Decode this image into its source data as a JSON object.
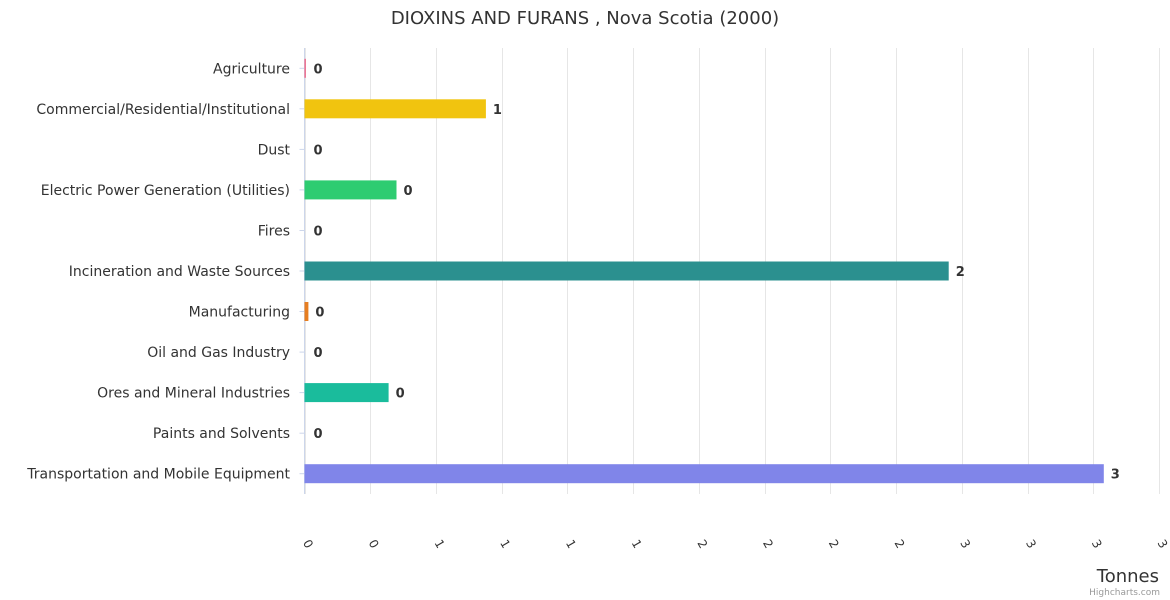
{
  "chart_data": {
    "type": "bar",
    "orientation": "horizontal",
    "title": "DIOXINS AND FURANS , Nova Scotia (2000)",
    "categories": [
      "Agriculture",
      "Commercial/Residential/Institutional",
      "Dust",
      "Electric Power Generation (Utilities)",
      "Fires",
      "Incineration and Waste Sources",
      "Manufacturing",
      "Oil and Gas Industry",
      "Ores and Mineral Industries",
      "Paints and Solvents",
      "Transportation and Mobile Equipment"
    ],
    "values": [
      0.005,
      0.69,
      0,
      0.35,
      0,
      2.45,
      0.015,
      0,
      0.32,
      0,
      3.04
    ],
    "data_labels": [
      "0",
      "1",
      "0",
      "0",
      "0",
      "2",
      "0",
      "0",
      "0",
      "0",
      "3"
    ],
    "colors": [
      "#f15c80",
      "#f1c40f",
      "#9b59b6",
      "#2ecc71",
      "#e74c3c",
      "#2b908f",
      "#e67e22",
      "#3498db",
      "#1abc9c",
      "#95a5a6",
      "#8085e9"
    ],
    "xlabel": "Tonnes",
    "xlim": [
      0,
      3.25
    ],
    "x_ticks": [
      0,
      0.25,
      0.5,
      0.75,
      1,
      1.25,
      1.5,
      1.75,
      2,
      2.25,
      2.5,
      2.75,
      3,
      3.25
    ],
    "x_tick_labels": [
      "0",
      "0",
      "1",
      "1",
      "1",
      "1",
      "2",
      "2",
      "2",
      "2",
      "3",
      "3",
      "3",
      "3"
    ],
    "grid": true,
    "legend": "none",
    "credits": "Highcharts.com"
  }
}
